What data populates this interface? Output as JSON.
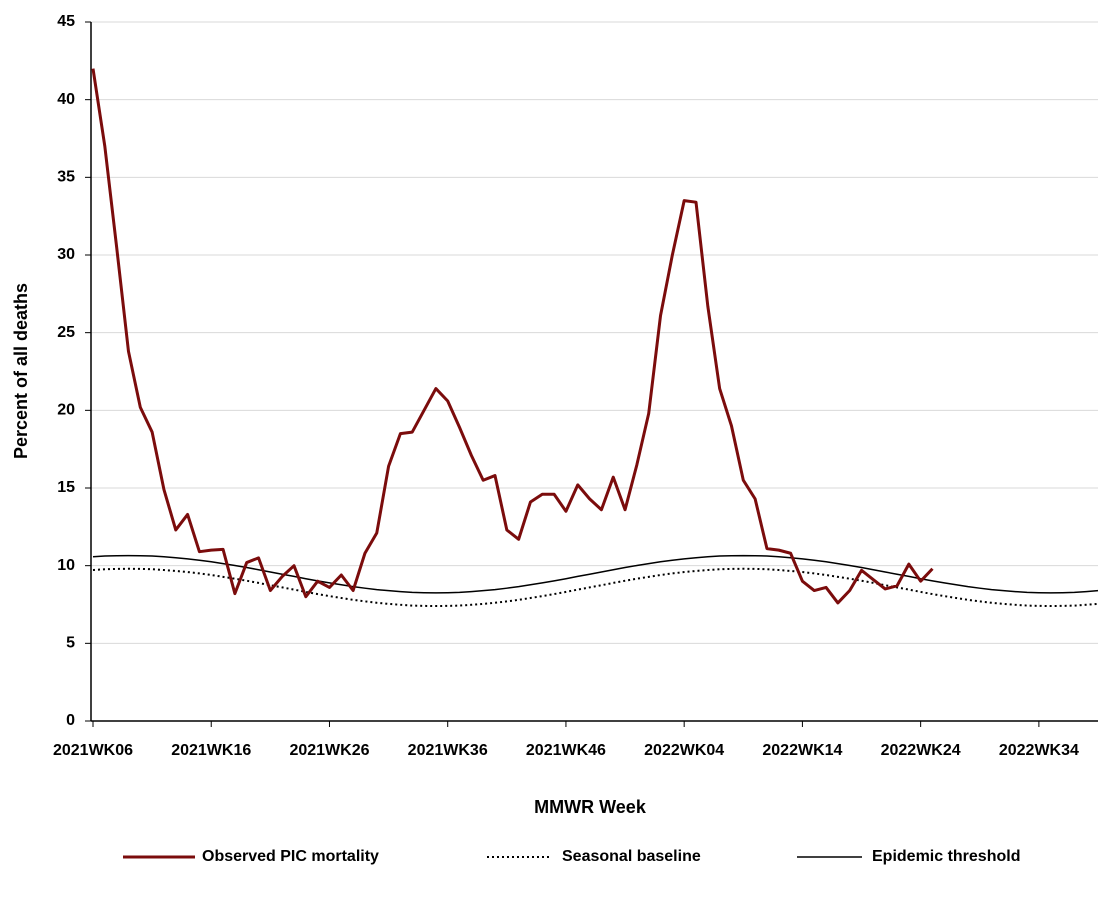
{
  "chart_data": {
    "type": "line",
    "x_label": "MMWR Week",
    "y_label": "Percent of all deaths",
    "categories": [
      "2021WK06",
      null,
      null,
      null,
      null,
      null,
      null,
      null,
      null,
      null,
      "2021WK16",
      null,
      null,
      null,
      null,
      null,
      null,
      null,
      null,
      null,
      "2021WK26",
      null,
      null,
      null,
      null,
      null,
      null,
      null,
      null,
      null,
      "2021WK36",
      null,
      null,
      null,
      null,
      null,
      null,
      null,
      null,
      null,
      "2021WK46",
      null,
      null,
      null,
      null,
      null,
      null,
      null,
      null,
      null,
      "2022WK04",
      null,
      null,
      null,
      null,
      null,
      null,
      null,
      null,
      null,
      "2022WK14",
      null,
      null,
      null,
      null,
      null,
      null,
      null,
      null,
      null,
      "2022WK24",
      null,
      null,
      null,
      null,
      null,
      null,
      null,
      null,
      null,
      "2022WK34",
      null,
      null,
      null,
      null,
      null
    ],
    "ylim": [
      0,
      45
    ],
    "yticks": [
      0,
      5,
      10,
      15,
      20,
      25,
      30,
      35,
      40,
      45
    ],
    "grid": true,
    "legend": "bottom",
    "series": [
      {
        "name": "Observed PIC mortality",
        "color": "#7b0c0c",
        "line_style": "solid",
        "line_width": 3,
        "values": [
          42.0,
          37.0,
          30.5,
          23.8,
          20.2,
          18.6,
          14.9,
          12.3,
          13.3,
          10.9,
          11.0,
          11.05,
          8.2,
          10.2,
          10.5,
          8.4,
          9.3,
          10.0,
          8.0,
          9.0,
          8.6,
          9.4,
          8.4,
          10.8,
          12.1,
          16.4,
          18.5,
          18.6,
          20.0,
          21.4,
          20.6,
          18.9,
          17.1,
          15.5,
          15.8,
          12.3,
          11.7,
          14.1,
          14.6,
          14.6,
          13.5,
          15.2,
          14.3,
          13.6,
          15.7,
          13.6,
          16.5,
          19.8,
          26.1,
          30.0,
          33.5,
          33.4,
          26.7,
          21.4,
          19.0,
          15.5,
          14.3,
          11.1,
          11.0,
          10.8,
          9.0,
          8.4,
          8.6,
          7.6,
          8.4,
          9.7,
          9.1,
          8.5,
          8.7,
          10.1,
          9.0,
          9.8,
          null,
          null,
          null,
          null,
          null,
          null,
          null,
          null,
          null,
          null,
          null,
          null,
          null,
          null
        ]
      },
      {
        "name": "Seasonal baseline",
        "color": "#000000",
        "line_style": "dotted",
        "line_width": 2,
        "values": [
          9.72,
          9.77,
          9.79,
          9.8,
          9.79,
          9.77,
          9.72,
          9.66,
          9.59,
          9.5,
          9.4,
          9.28,
          9.16,
          9.03,
          8.89,
          8.74,
          8.6,
          8.46,
          8.31,
          8.17,
          8.04,
          7.92,
          7.8,
          7.7,
          7.61,
          7.54,
          7.48,
          7.43,
          7.41,
          7.4,
          7.41,
          7.43,
          7.48,
          7.54,
          7.61,
          7.7,
          7.8,
          7.92,
          8.04,
          8.17,
          8.31,
          8.46,
          8.6,
          8.74,
          8.89,
          9.03,
          9.16,
          9.28,
          9.4,
          9.5,
          9.59,
          9.66,
          9.72,
          9.77,
          9.79,
          9.8,
          9.79,
          9.77,
          9.72,
          9.66,
          9.59,
          9.5,
          9.4,
          9.28,
          9.16,
          9.03,
          8.89,
          8.74,
          8.6,
          8.46,
          8.31,
          8.17,
          8.04,
          7.92,
          7.8,
          7.7,
          7.61,
          7.54,
          7.48,
          7.43,
          7.41,
          7.4,
          7.41,
          7.43,
          7.48,
          7.54
        ]
      },
      {
        "name": "Epidemic threshold",
        "color": "#000000",
        "line_style": "solid",
        "line_width": 1.5,
        "values": [
          10.57,
          10.62,
          10.64,
          10.65,
          10.64,
          10.62,
          10.57,
          10.51,
          10.44,
          10.35,
          10.25,
          10.13,
          10.01,
          9.88,
          9.74,
          9.59,
          9.45,
          9.31,
          9.16,
          9.02,
          8.89,
          8.77,
          8.65,
          8.55,
          8.46,
          8.39,
          8.33,
          8.28,
          8.26,
          8.25,
          8.26,
          8.28,
          8.33,
          8.39,
          8.46,
          8.55,
          8.65,
          8.77,
          8.89,
          9.02,
          9.16,
          9.31,
          9.45,
          9.59,
          9.74,
          9.88,
          10.01,
          10.13,
          10.25,
          10.35,
          10.44,
          10.51,
          10.57,
          10.62,
          10.64,
          10.65,
          10.64,
          10.62,
          10.57,
          10.51,
          10.44,
          10.35,
          10.25,
          10.13,
          10.01,
          9.88,
          9.74,
          9.59,
          9.45,
          9.31,
          9.16,
          9.02,
          8.89,
          8.77,
          8.65,
          8.55,
          8.46,
          8.39,
          8.33,
          8.28,
          8.26,
          8.25,
          8.26,
          8.28,
          8.33,
          8.39
        ]
      }
    ]
  }
}
